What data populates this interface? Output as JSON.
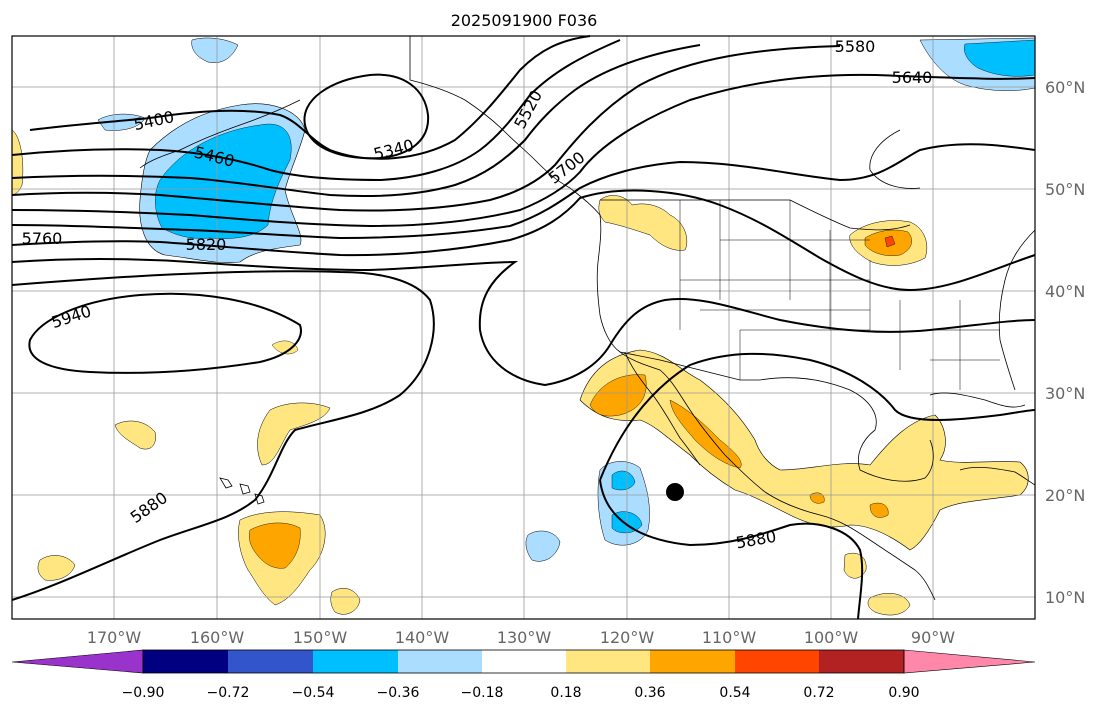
{
  "figure": {
    "title": "2025091900 F036",
    "lon_labels": [
      "170°W",
      "160°W",
      "150°W",
      "140°W",
      "130°W",
      "120°W",
      "110°W",
      "100°W",
      "90°W"
    ],
    "lat_labels": [
      "60°N",
      "50°N",
      "40°N",
      "30°N",
      "20°N",
      "10°N"
    ]
  },
  "contours": {
    "labels": [
      "5580",
      "5640",
      "5400",
      "5340",
      "5460",
      "5520",
      "5700",
      "5760",
      "5820",
      "5940",
      "5880",
      "5880"
    ]
  },
  "colorbar": {
    "ticks": [
      "−0.90",
      "−0.72",
      "−0.54",
      "−0.36",
      "−0.18",
      "0.18",
      "0.36",
      "0.54",
      "0.72",
      "0.90"
    ],
    "colors": [
      "#9933cc",
      "#000080",
      "#3355cc",
      "#00bfff",
      "#aaddff",
      "#ffffff",
      "#ffe680",
      "#ffa500",
      "#ff4500",
      "#b22222",
      "#ff88aa"
    ]
  },
  "colors": {
    "light_blue": "#aaddff",
    "deep_sky_blue": "#00bfff",
    "light_yellow": "#ffe680",
    "orange": "#ffa500",
    "red_orange": "#ff4500",
    "grid": "#999999",
    "coast": "#000000"
  },
  "marker": {
    "symbol": "storm-center-dot"
  }
}
